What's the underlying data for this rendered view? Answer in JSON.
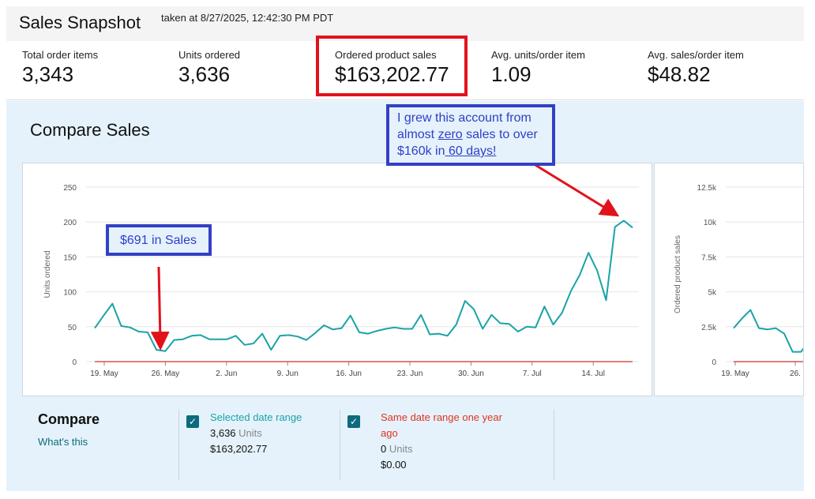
{
  "header": {
    "title": "Sales Snapshot",
    "taken": "taken at 8/27/2025, 12:42:30 PM PDT"
  },
  "metrics": [
    {
      "label": "Total order items",
      "value": "3,343"
    },
    {
      "label": "Units ordered",
      "value": "3,636"
    },
    {
      "label": "Ordered product sales",
      "value": "$163,202.77"
    },
    {
      "label": "Avg. units/order item",
      "value": "1.09"
    },
    {
      "label": "Avg. sales/order item",
      "value": "$48.82"
    }
  ],
  "compare_title": "Compare Sales",
  "annotations": {
    "left": "$691 in Sales",
    "right_line1": "I grew this account from",
    "right_line2a": "almost ",
    "right_line2b": "zero",
    "right_line2c": " sales to over",
    "right_line3a": "$160k in",
    "right_line3b": " 60 days!"
  },
  "colors": {
    "accent_teal": "#1aa3a7",
    "prior_red": "#d9534f",
    "highlight_red": "#e2121b",
    "annotation_blue": "#3340c4"
  },
  "chart_data": [
    {
      "type": "line",
      "ylabel": "Units ordered",
      "ylim": [
        0,
        250
      ],
      "yticks": [
        "0",
        "50",
        "100",
        "150",
        "200",
        "250"
      ],
      "xticks": [
        "19. May",
        "26. May",
        "2. Jun",
        "9. Jun",
        "16. Jun",
        "23. Jun",
        "30. Jun",
        "7. Jul",
        "14. Jul"
      ],
      "grid": true,
      "series": [
        {
          "values": [
            48,
            66,
            83,
            51,
            49,
            43,
            42,
            17,
            15,
            31,
            32,
            37,
            38,
            32,
            32,
            32,
            37,
            24,
            26,
            40,
            17,
            37,
            38,
            36,
            31,
            41,
            52,
            46,
            48,
            66,
            42,
            40,
            44,
            47,
            49,
            47,
            47,
            67,
            39,
            40,
            37,
            53,
            87,
            75,
            47,
            67,
            55,
            54,
            43,
            50,
            49,
            79,
            53,
            70,
            101,
            124,
            156,
            130,
            88,
            193,
            202,
            192
          ]
        },
        {
          "values": [
            0,
            0,
            0,
            0,
            0,
            0,
            0,
            0,
            0,
            0,
            0,
            0,
            0,
            0,
            0,
            0,
            0,
            0,
            0,
            0,
            0,
            0,
            0,
            0,
            0,
            0,
            0,
            0,
            0,
            0,
            0,
            0,
            0,
            0,
            0,
            0,
            0,
            0,
            0,
            0,
            0,
            0,
            0,
            0,
            0,
            0,
            0,
            0,
            0,
            0,
            0,
            0,
            0,
            0,
            0,
            0,
            0,
            0,
            0,
            0,
            0,
            0
          ]
        }
      ]
    },
    {
      "type": "line",
      "ylabel": "Ordered product sales",
      "ylim": [
        0,
        12500
      ],
      "yticks": [
        "0",
        "2.5k",
        "5k",
        "7.5k",
        "10k",
        "12.5k"
      ],
      "xticks": [
        "19. May",
        "26."
      ],
      "grid": true,
      "series": [
        {
          "values": [
            2400,
            3100,
            3700,
            2400,
            2300,
            2400,
            2000,
            700,
            700,
            1500
          ]
        },
        {
          "values": [
            0,
            0,
            0,
            0,
            0,
            0,
            0,
            0,
            0,
            0
          ]
        }
      ]
    }
  ],
  "legend": {
    "title": "Compare",
    "whats_this": "What's this",
    "selected": {
      "name": "Selected date range",
      "units": "3,636",
      "units_suffix": " Units",
      "sales": "$163,202.77"
    },
    "prior": {
      "name_line1": "Same date range one year",
      "name_line2": "ago",
      "units": "0",
      "units_suffix": " Units",
      "sales": "$0.00"
    }
  }
}
